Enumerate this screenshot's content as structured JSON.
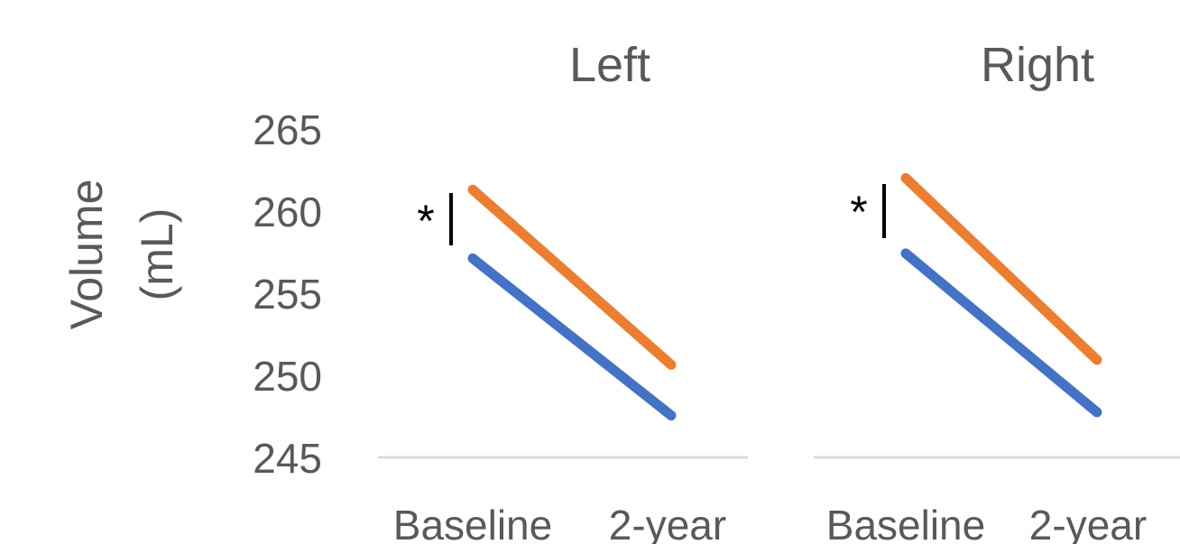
{
  "chart_data": {
    "type": "line",
    "ylabel": "Volume (mL)",
    "ylabel_lines": [
      "Volume",
      "(mL)"
    ],
    "ylim": [
      245,
      265
    ],
    "yticks": [
      265,
      260,
      255,
      250,
      245
    ],
    "categories": [
      "Baseline",
      "2-year"
    ],
    "grid": false,
    "colors": {
      "series_a": "#ED7D31",
      "series_b": "#4472C4",
      "axis": "#D9D9D9",
      "text": "#595959",
      "marker": "#000000"
    },
    "panels": [
      {
        "title": "Left",
        "annotation": "*",
        "series": [
          {
            "values": [
              261.3,
              250.6
            ],
            "color": "#ED7D31"
          },
          {
            "values": [
              257.1,
              247.5
            ],
            "color": "#4472C4"
          }
        ]
      },
      {
        "title": "Right",
        "annotation": "*",
        "series": [
          {
            "values": [
              262.0,
              250.9
            ],
            "color": "#ED7D31"
          },
          {
            "values": [
              257.4,
              247.7
            ],
            "color": "#4472C4"
          }
        ]
      }
    ]
  }
}
